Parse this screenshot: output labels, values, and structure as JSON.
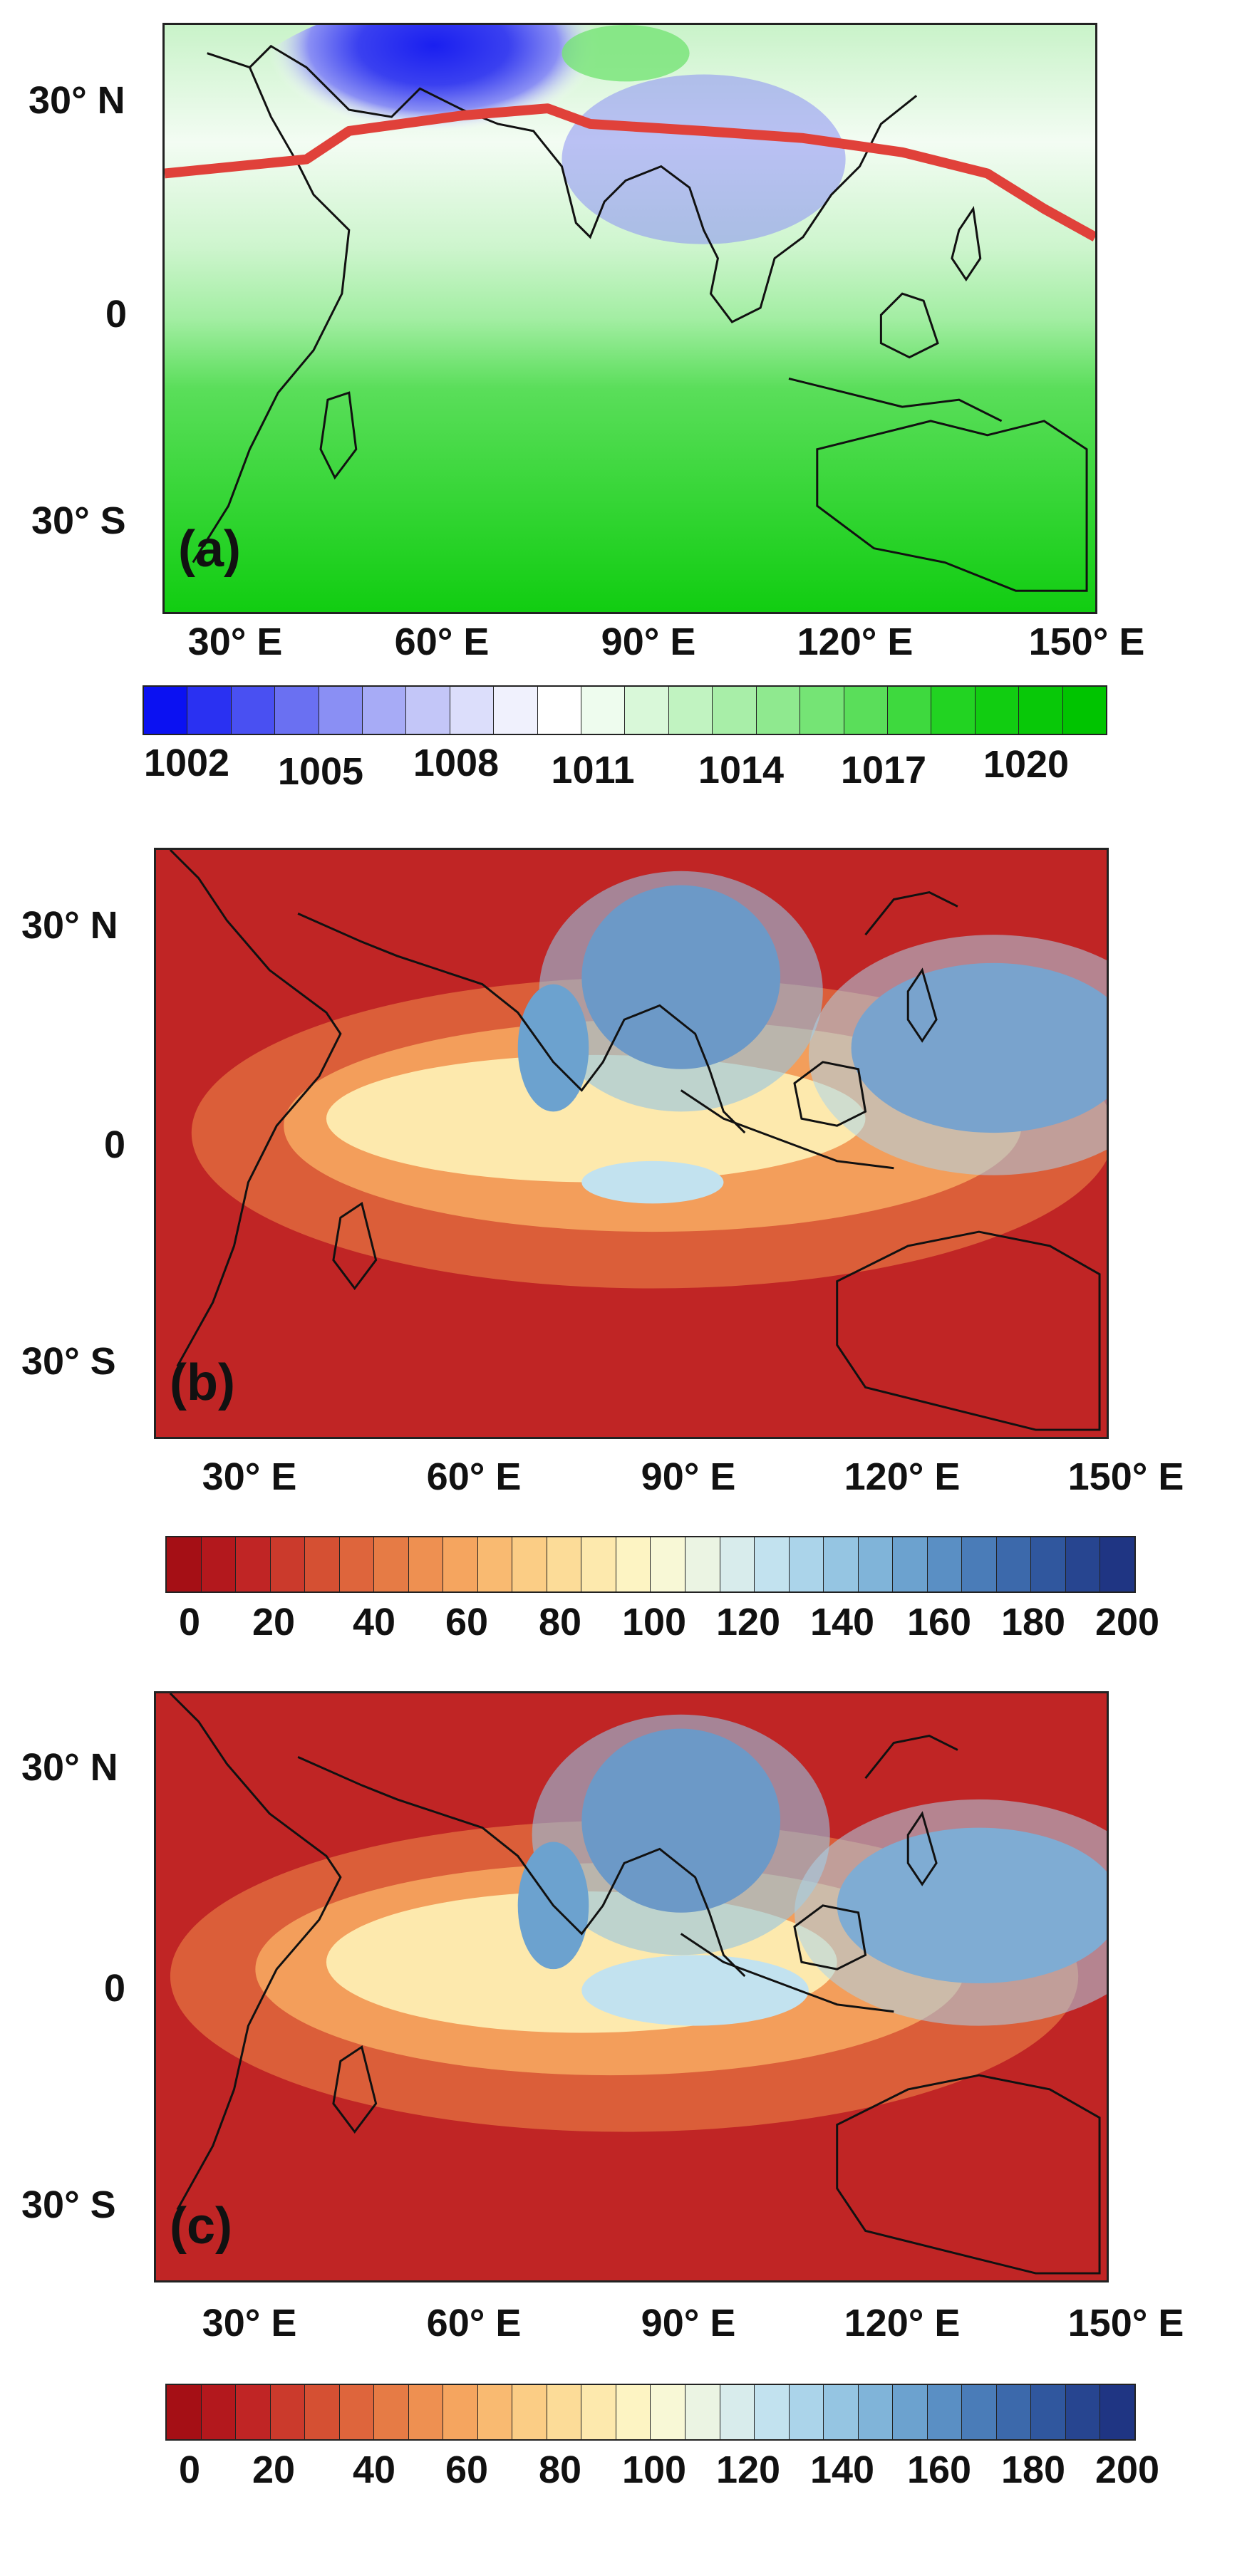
{
  "panels": [
    {
      "letter": "(a)",
      "lat_labels": [
        "30° N",
        "0",
        "30° S"
      ],
      "lon_labels": [
        "30° E",
        "60° E",
        "90° E",
        "120° E",
        "150° E"
      ],
      "colorbar": {
        "labels": [
          "1002",
          "1005",
          "1008",
          "1011",
          "1014",
          "1017",
          "1020"
        ],
        "colors": [
          "#0b11f2",
          "#2a31f2",
          "#4950f2",
          "#6a70f2",
          "#8a8ff4",
          "#a7abf6",
          "#c3c6f8",
          "#dcdefb",
          "#f0f1fd",
          "#ffffff",
          "#eefcee",
          "#d9f8d9",
          "#c1f3c1",
          "#a8eea8",
          "#8fe98f",
          "#75e475",
          "#5ade5a",
          "#3ed93e",
          "#22d322",
          "#11cd11",
          "#08c808",
          "#00c400"
        ]
      },
      "colormap": "pressure",
      "has_trough_line": true,
      "trough_line_color": "#e0413a"
    },
    {
      "letter": "(b)",
      "lat_labels": [
        "30° N",
        "0",
        "30° S"
      ],
      "lon_labels": [
        "30° E",
        "60° E",
        "90° E",
        "120° E",
        "150° E"
      ],
      "colorbar": {
        "labels": [
          "0",
          "20",
          "40",
          "60",
          "80",
          "100",
          "120",
          "140",
          "160",
          "180",
          "200"
        ],
        "colors": [
          "#a50f15",
          "#b3181d",
          "#c02525",
          "#cb3a2c",
          "#d55033",
          "#de653c",
          "#e67b45",
          "#ee9051",
          "#f5a55f",
          "#f9ba71",
          "#fbcd85",
          "#fcdc98",
          "#fde9ad",
          "#fdf4c3",
          "#f8f8d6",
          "#ebf4e3",
          "#d8ecec",
          "#c2e2ef",
          "#abd4ea",
          "#95c5e2",
          "#80b4d9",
          "#6ca2cf",
          "#5a8fc4",
          "#4a7cb8",
          "#3c69ab",
          "#30579e",
          "#274590",
          "#1f3583"
        ]
      },
      "colormap": "redblue",
      "has_trough_line": false
    },
    {
      "letter": "(c)",
      "lat_labels": [
        "30° N",
        "0",
        "30° S"
      ],
      "lon_labels": [
        "30° E",
        "60° E",
        "90° E",
        "120° E",
        "150° E"
      ],
      "colorbar": {
        "labels": [
          "0",
          "20",
          "40",
          "60",
          "80",
          "100",
          "120",
          "140",
          "160",
          "180",
          "200"
        ],
        "colors": [
          "#a50f15",
          "#b3181d",
          "#c02525",
          "#cb3a2c",
          "#d55033",
          "#de653c",
          "#e67b45",
          "#ee9051",
          "#f5a55f",
          "#f9ba71",
          "#fbcd85",
          "#fcdc98",
          "#fde9ad",
          "#fdf4c3",
          "#f8f8d6",
          "#ebf4e3",
          "#d8ecec",
          "#c2e2ef",
          "#abd4ea",
          "#95c5e2",
          "#80b4d9",
          "#6ca2cf",
          "#5a8fc4",
          "#4a7cb8",
          "#3c69ab",
          "#30579e",
          "#274590",
          "#1f3583"
        ]
      },
      "colormap": "redblue",
      "has_trough_line": false
    }
  ]
}
